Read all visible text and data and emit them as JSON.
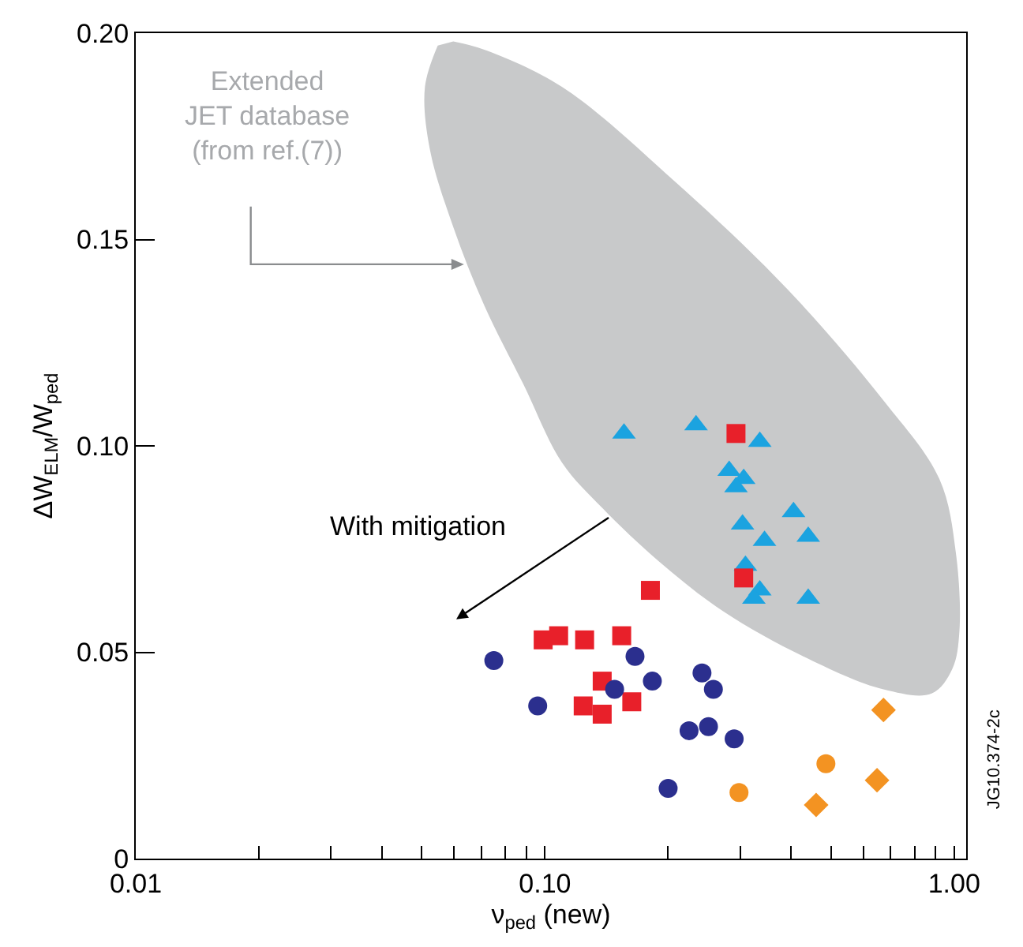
{
  "chart_data": {
    "type": "scatter",
    "xlabel": "ν$_{ped}$ (new)",
    "ylabel": "ΔW$_{ELM}$/W$_{ped}$",
    "log": "x",
    "xlim": [
      0.01,
      1.07
    ],
    "ylim": [
      0,
      0.2
    ],
    "xticks": [
      {
        "value": 0.01,
        "label": "0.01"
      },
      {
        "value": 0.02,
        "label": null
      },
      {
        "value": 0.03,
        "label": null
      },
      {
        "value": 0.04,
        "label": null
      },
      {
        "value": 0.05,
        "label": null
      },
      {
        "value": 0.06,
        "label": null
      },
      {
        "value": 0.07,
        "label": null
      },
      {
        "value": 0.08,
        "label": null
      },
      {
        "value": 0.09,
        "label": null
      },
      {
        "value": 0.1,
        "label": "0.10"
      },
      {
        "value": 0.2,
        "label": null
      },
      {
        "value": 0.3,
        "label": null
      },
      {
        "value": 0.4,
        "label": null
      },
      {
        "value": 0.5,
        "label": null
      },
      {
        "value": 0.6,
        "label": null
      },
      {
        "value": 0.7,
        "label": null
      },
      {
        "value": 0.8,
        "label": null
      },
      {
        "value": 0.9,
        "label": null
      },
      {
        "value": 1,
        "label": "1.00"
      }
    ],
    "yticks": [
      0,
      0.05,
      {
        "value": 0.1,
        "label": "0.10"
      },
      0.15,
      {
        "value": 0.2,
        "label": "0.20"
      }
    ],
    "annotations": [
      "Extended\nJET database\n(from ref.(7))",
      "With mitigation",
      "JG10.374-2c"
    ],
    "series": [
      {
        "type": "area",
        "color": "#c8c9ca",
        "x": [
          0.0547,
          0.0509,
          0.0523,
          0.0597,
          0.0711,
          0.0885,
          0.11,
          0.138,
          0.19,
          0.272,
          0.428,
          0.672,
          0.881,
          0.99,
          1.03,
          1.01,
          0.92,
          0.672,
          0.391,
          0.208,
          0.11,
          0.0711,
          0.0597
        ],
        "values": [
          0.197,
          0.187,
          0.172,
          0.153,
          0.134,
          0.115,
          0.096,
          0.085,
          0.072,
          0.06,
          0.049,
          0.041,
          0.04,
          0.046,
          0.055,
          0.074,
          0.092,
          0.111,
          0.138,
          0.164,
          0.187,
          0.196,
          0.198
        ]
      },
      {
        "marker": "triangle",
        "color": "#1ba3e0",
        "x": [
          0.156,
          0.234,
          0.335,
          0.282,
          0.306,
          0.293,
          0.405,
          0.304,
          0.344,
          0.44,
          0.309,
          0.335,
          0.324,
          0.44
        ],
        "values": [
          0.103,
          0.105,
          0.101,
          0.094,
          0.092,
          0.09,
          0.084,
          0.081,
          0.077,
          0.078,
          0.071,
          0.065,
          0.063,
          0.063
        ]
      },
      {
        "marker": "square",
        "color": "#e8202a",
        "x": [
          0.293,
          0.306,
          0.181,
          0.099,
          0.108,
          0.125,
          0.154,
          0.138,
          0.124,
          0.138,
          0.163
        ],
        "values": [
          0.103,
          0.068,
          0.065,
          0.053,
          0.054,
          0.053,
          0.054,
          0.043,
          0.037,
          0.035,
          0.038
        ]
      },
      {
        "marker": "circle",
        "color": "#2b2f8e",
        "x": [
          0.075,
          0.096,
          0.148,
          0.166,
          0.183,
          0.242,
          0.258,
          0.225,
          0.251,
          0.29,
          0.2
        ],
        "values": [
          0.048,
          0.037,
          0.041,
          0.049,
          0.043,
          0.045,
          0.041,
          0.031,
          0.032,
          0.029,
          0.017
        ]
      },
      {
        "marker": "circle",
        "color": "#f39322",
        "x": [
          0.298,
          0.486
        ],
        "values": [
          0.016,
          0.023
        ]
      },
      {
        "marker": "diamond",
        "color": "#f39322",
        "x": [
          0.672,
          0.648,
          0.46
        ],
        "values": [
          0.036,
          0.019,
          0.013
        ]
      }
    ]
  }
}
